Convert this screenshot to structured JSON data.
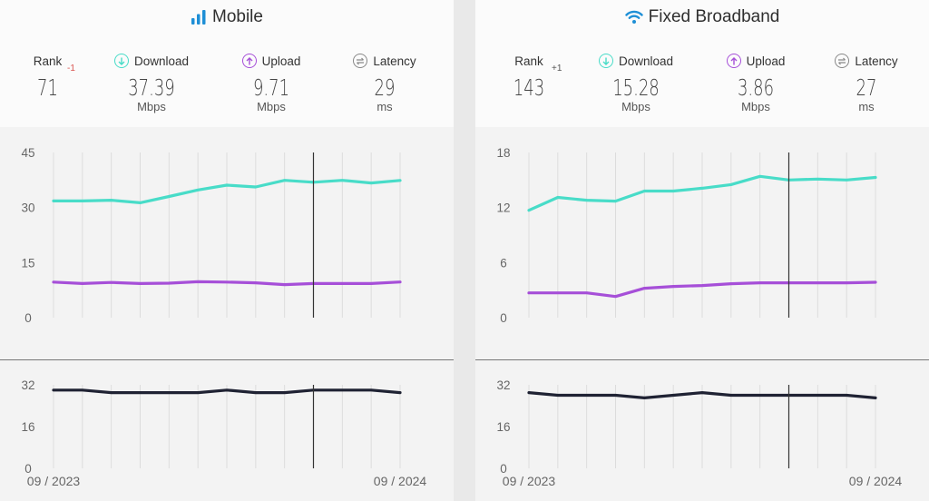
{
  "panels": [
    {
      "title": "Mobile",
      "icon": "signal-bars-icon",
      "rank_label": "Rank",
      "rank_value": "71",
      "rank_change": "-1",
      "rank_change_color": "#d9534f",
      "download_label": "Download",
      "download_value": "37.39",
      "download_unit": "Mbps",
      "upload_label": "Upload",
      "upload_value": "9.71",
      "upload_unit": "Mbps",
      "latency_label": "Latency",
      "latency_value": "29",
      "latency_unit": "ms",
      "x_start_label": "09 / 2023",
      "x_end_label": "09 / 2024"
    },
    {
      "title": "Fixed Broadband",
      "icon": "wifi-icon",
      "rank_label": "Rank",
      "rank_value": "143",
      "rank_change": "+1",
      "rank_change_color": "#555555",
      "download_label": "Download",
      "download_value": "15.28",
      "download_unit": "Mbps",
      "upload_label": "Upload",
      "upload_value": "3.86",
      "upload_unit": "Mbps",
      "latency_label": "Latency",
      "latency_value": "27",
      "latency_unit": "ms",
      "x_start_label": "09 / 2023",
      "x_end_label": "09 / 2024"
    }
  ],
  "colors": {
    "download": "#48dcc8",
    "upload": "#a64fd8",
    "latency": "#1f2233",
    "accent_blue": "#1e8fd6"
  },
  "chart_data": [
    {
      "type": "line",
      "chart": "Mobile speeds",
      "x": [
        "2023-09",
        "2023-10",
        "2023-11",
        "2023-12",
        "2024-01",
        "2024-02",
        "2024-03",
        "2024-04",
        "2024-05",
        "2024-06",
        "2024-07",
        "2024-08",
        "2024-09"
      ],
      "yticks": [
        0,
        15,
        30,
        45
      ],
      "ylim": [
        0,
        45
      ],
      "series": [
        {
          "name": "Download",
          "values": [
            31.8,
            31.8,
            32.0,
            31.3,
            33.0,
            34.8,
            36.1,
            35.6,
            37.4,
            36.9,
            37.4,
            36.7,
            37.39
          ]
        },
        {
          "name": "Upload",
          "values": [
            9.7,
            9.3,
            9.6,
            9.3,
            9.4,
            9.8,
            9.7,
            9.5,
            9.0,
            9.3,
            9.3,
            9.3,
            9.71
          ]
        }
      ]
    },
    {
      "type": "line",
      "chart": "Mobile latency",
      "x": [
        "2023-09",
        "2023-10",
        "2023-11",
        "2023-12",
        "2024-01",
        "2024-02",
        "2024-03",
        "2024-04",
        "2024-05",
        "2024-06",
        "2024-07",
        "2024-08",
        "2024-09"
      ],
      "yticks": [
        0,
        16,
        32
      ],
      "ylim": [
        0,
        32
      ],
      "series": [
        {
          "name": "Latency",
          "values": [
            30,
            30,
            29,
            29,
            29,
            29,
            30,
            29,
            29,
            30,
            30,
            30,
            29
          ]
        }
      ]
    },
    {
      "type": "line",
      "chart": "Fixed Broadband speeds",
      "x": [
        "2023-09",
        "2023-10",
        "2023-11",
        "2023-12",
        "2024-01",
        "2024-02",
        "2024-03",
        "2024-04",
        "2024-05",
        "2024-06",
        "2024-07",
        "2024-08",
        "2024-09"
      ],
      "yticks": [
        0,
        6,
        12,
        18
      ],
      "ylim": [
        0,
        18
      ],
      "series": [
        {
          "name": "Download",
          "values": [
            11.7,
            13.1,
            12.8,
            12.7,
            13.8,
            13.8,
            14.1,
            14.5,
            15.4,
            15.0,
            15.1,
            15.0,
            15.28
          ]
        },
        {
          "name": "Upload",
          "values": [
            2.7,
            2.7,
            2.7,
            2.3,
            3.2,
            3.4,
            3.5,
            3.7,
            3.8,
            3.8,
            3.8,
            3.8,
            3.86
          ]
        }
      ]
    },
    {
      "type": "line",
      "chart": "Fixed Broadband latency",
      "x": [
        "2023-09",
        "2023-10",
        "2023-11",
        "2023-12",
        "2024-01",
        "2024-02",
        "2024-03",
        "2024-04",
        "2024-05",
        "2024-06",
        "2024-07",
        "2024-08",
        "2024-09"
      ],
      "yticks": [
        0,
        16,
        32
      ],
      "ylim": [
        0,
        32
      ],
      "series": [
        {
          "name": "Latency",
          "values": [
            29,
            28,
            28,
            28,
            27,
            28,
            29,
            28,
            28,
            28,
            28,
            28,
            27
          ]
        }
      ]
    }
  ]
}
